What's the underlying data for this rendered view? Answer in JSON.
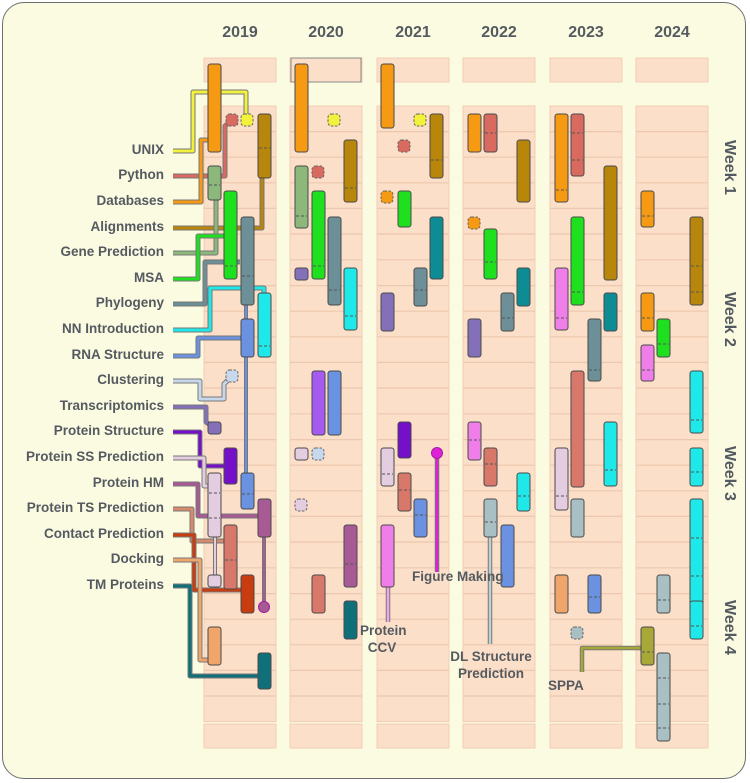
{
  "years": [
    "2019",
    "2020",
    "2021",
    "2022",
    "2023",
    "2024"
  ],
  "weeks": [
    "Week 1",
    "Week 2",
    "Week 3",
    "Week 4"
  ],
  "topics": [
    {
      "label": "UNIX",
      "color": "#ebeb3c"
    },
    {
      "label": "Python",
      "color": "#d96a60"
    },
    {
      "label": "Databases",
      "color": "#c28220"
    },
    {
      "label": "Alignments",
      "color": "#b08a10"
    },
    {
      "label": "Gene Prediction",
      "color": "#86ac6e"
    },
    {
      "label": "MSA",
      "color": "#1ee01e"
    },
    {
      "label": "Phylogeny",
      "color": "#6c8f98"
    },
    {
      "label": "NN Introduction",
      "color": "#1ee8e8"
    },
    {
      "label": "RNA Structure",
      "color": "#5a86d2"
    },
    {
      "label": "Clustering",
      "color": "#aabfd8"
    },
    {
      "label": "Transcriptomics",
      "color": "#8470b8"
    },
    {
      "label": "Protein Structure",
      "color": "#7410c8"
    },
    {
      "label": "Protein SS Prediction",
      "color": "#d3c2d2"
    },
    {
      "label": "Protein HM",
      "color": "#a85a94"
    },
    {
      "label": "Protein TS Prediction",
      "color": "#d88a6c"
    },
    {
      "label": "Contact Prediction",
      "color": "#b83010"
    },
    {
      "label": "Docking",
      "color": "#d88a60"
    },
    {
      "label": "TM Proteins",
      "color": "#10707a"
    }
  ],
  "annotations": {
    "figure_making": "Figure Making",
    "protein_ccv": "Protein CCV",
    "dl_structure_prediction": "DL Structure Prediction",
    "sppa": "SPPA"
  },
  "colors": {
    "background": "#fbfbe2",
    "cell": "#fbdfc8",
    "text": "#555a60",
    "orange": "#f59a12",
    "unix": "#f2f23c",
    "python": "#d96a60",
    "alignments": "#b8860b",
    "gene_prediction": "#8cb87c",
    "msa": "#1ee01e",
    "phylogeny": "#6c8f98",
    "teal": "#0e8c94",
    "cyan": "#1ee8e8",
    "blue": "#6a92e0",
    "clustering": "#c8d8ec",
    "transcriptomics": "#8470b8",
    "protein_structure": "#7410c8",
    "ss_prediction": "#e4cde0",
    "protein_hm": "#a85a94",
    "ts_prediction": "#d88a6c",
    "contact": "#c83c10",
    "docking": "#f0a66a",
    "tm": "#10707a",
    "pink": "#f07ee8",
    "magenta": "#e020d8",
    "salmon": "#d8786a",
    "olive": "#a8a838",
    "grey_blue": "#a8c0c4",
    "violet": "#a55af2"
  }
}
